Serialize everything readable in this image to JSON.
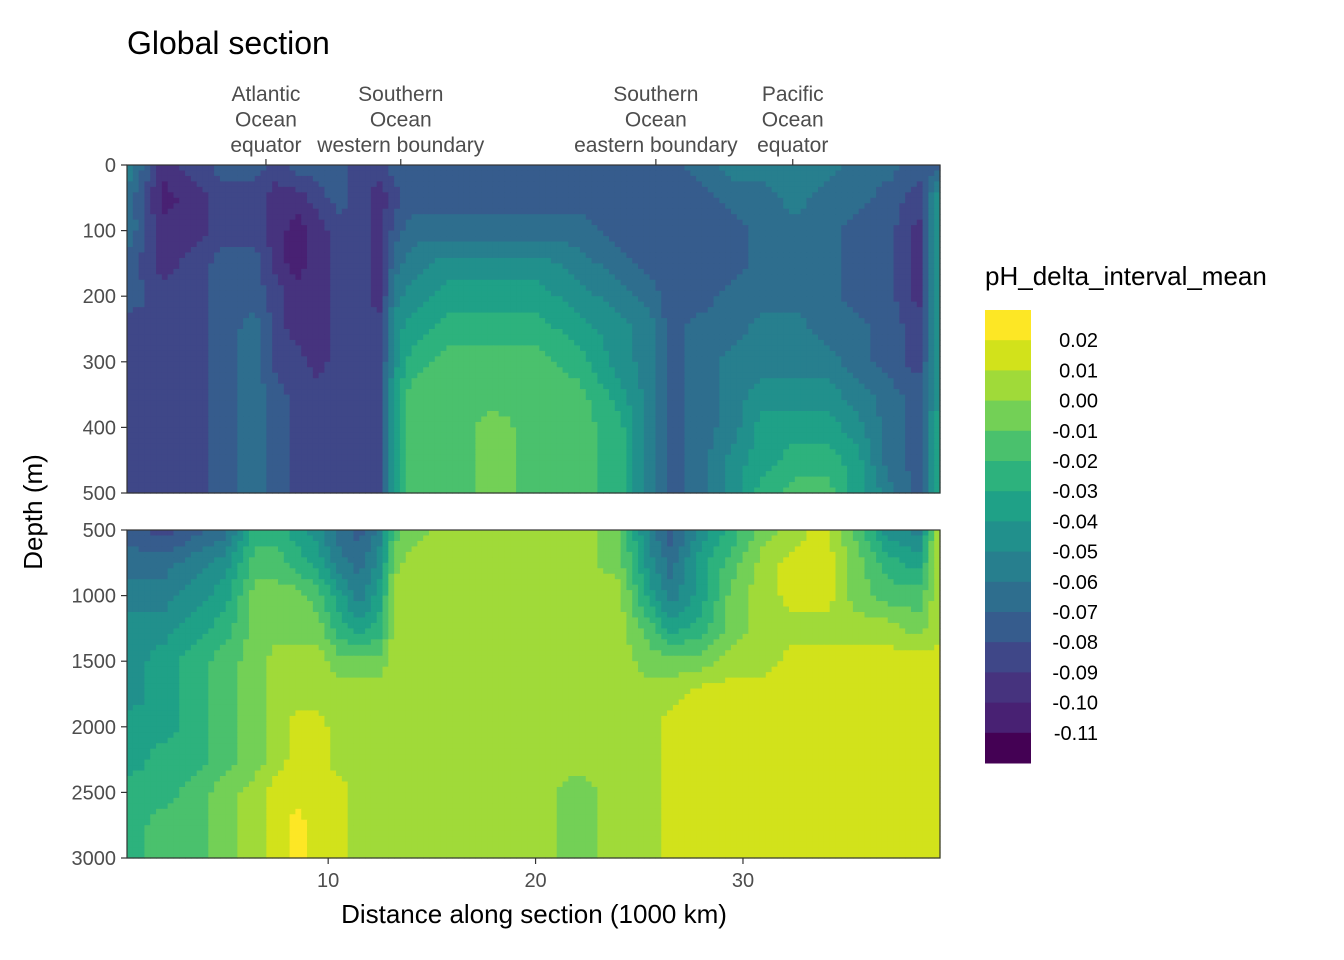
{
  "chart_data": {
    "type": "heatmap",
    "title": "Global section",
    "xlabel": "Distance along section (1000 km)",
    "ylabel": "Depth (m)",
    "x_range": [
      0.3,
      39.5
    ],
    "x_ticks": [
      {
        "value": 10,
        "label": "10"
      },
      {
        "value": 20,
        "label": "20"
      },
      {
        "value": 30,
        "label": "30"
      }
    ],
    "top_labels": [
      {
        "x": 7.0,
        "lines": [
          "Atlantic",
          "Ocean",
          "equator"
        ]
      },
      {
        "x": 13.5,
        "lines": [
          "Southern",
          "Ocean",
          "western boundary"
        ]
      },
      {
        "x": 25.8,
        "lines": [
          "Southern",
          "Ocean",
          "eastern boundary"
        ]
      },
      {
        "x": 32.4,
        "lines": [
          "Pacific",
          "Ocean",
          "equator"
        ]
      }
    ],
    "panels": [
      {
        "name": "upper",
        "depth_range": [
          0,
          500
        ],
        "y_ticks": [
          {
            "value": 0,
            "label": "0"
          },
          {
            "value": 100,
            "label": "100"
          },
          {
            "value": 200,
            "label": "200"
          },
          {
            "value": 300,
            "label": "300"
          },
          {
            "value": 400,
            "label": "400"
          },
          {
            "value": 500,
            "label": "500"
          }
        ]
      },
      {
        "name": "lower",
        "depth_range": [
          500,
          3000
        ],
        "y_ticks": [
          {
            "value": 500,
            "label": "500"
          },
          {
            "value": 1000,
            "label": "1000"
          },
          {
            "value": 1500,
            "label": "1500"
          },
          {
            "value": 2000,
            "label": "2000"
          },
          {
            "value": 2500,
            "label": "2500"
          },
          {
            "value": 3000,
            "label": "3000"
          }
        ]
      }
    ],
    "legend": {
      "title": "pH_delta_interval_mean",
      "placement": "right",
      "bins": [
        {
          "label": "",
          "color": "#FDE725"
        },
        {
          "label": "0.02",
          "color": "#D2E21B"
        },
        {
          "label": "0.01",
          "color": "#A0DA39"
        },
        {
          "label": "0.00",
          "color": "#73D056"
        },
        {
          "label": "-0.01",
          "color": "#4AC16D"
        },
        {
          "label": "-0.02",
          "color": "#2DB27D"
        },
        {
          "label": "-0.03",
          "color": "#1FA187"
        },
        {
          "label": "-0.04",
          "color": "#21908C"
        },
        {
          "label": "-0.05",
          "color": "#277F8E"
        },
        {
          "label": "-0.06",
          "color": "#2E6E8E"
        },
        {
          "label": "-0.07",
          "color": "#365C8D"
        },
        {
          "label": "-0.08",
          "color": "#3F4788"
        },
        {
          "label": "-0.09",
          "color": "#46337E"
        },
        {
          "label": "-0.10",
          "color": "#482173"
        },
        {
          "label": "-0.11",
          "color": "#440154"
        }
      ]
    },
    "fields": {
      "upper": {
        "x": [
          0.5,
          2.0,
          3.5,
          5.0,
          6.5,
          7.5,
          8.5,
          9.5,
          10.5,
          11.5,
          12.5,
          13.2,
          14.0,
          16.0,
          18.0,
          20.0,
          22.0,
          24.0,
          25.5,
          26.5,
          28.0,
          29.5,
          31.0,
          32.5,
          34.0,
          35.5,
          37.0,
          38.5,
          39.3
        ],
        "depth": [
          0,
          50,
          100,
          150,
          200,
          250,
          300,
          350,
          400,
          450,
          500
        ],
        "values": [
          [
            -0.06,
            -0.1,
            -0.09,
            -0.08,
            -0.08,
            -0.09,
            -0.08,
            -0.08,
            -0.08,
            -0.09,
            -0.09,
            -0.08,
            -0.08,
            -0.08,
            -0.08,
            -0.08,
            -0.08,
            -0.08,
            -0.08,
            -0.08,
            -0.07,
            -0.06,
            -0.06,
            -0.06,
            -0.06,
            -0.07,
            -0.07,
            -0.08,
            -0.08
          ],
          [
            -0.07,
            -0.11,
            -0.1,
            -0.09,
            -0.09,
            -0.1,
            -0.1,
            -0.09,
            -0.08,
            -0.09,
            -0.1,
            -0.09,
            -0.08,
            -0.08,
            -0.08,
            -0.08,
            -0.08,
            -0.08,
            -0.08,
            -0.08,
            -0.08,
            -0.07,
            -0.07,
            -0.06,
            -0.07,
            -0.07,
            -0.08,
            -0.09,
            -0.05
          ],
          [
            -0.07,
            -0.1,
            -0.1,
            -0.09,
            -0.09,
            -0.1,
            -0.11,
            -0.1,
            -0.09,
            -0.09,
            -0.1,
            -0.08,
            -0.07,
            -0.07,
            -0.07,
            -0.07,
            -0.07,
            -0.08,
            -0.08,
            -0.08,
            -0.08,
            -0.08,
            -0.07,
            -0.07,
            -0.07,
            -0.08,
            -0.08,
            -0.1,
            -0.05
          ],
          [
            -0.08,
            -0.1,
            -0.09,
            -0.08,
            -0.08,
            -0.1,
            -0.11,
            -0.1,
            -0.09,
            -0.09,
            -0.1,
            -0.07,
            -0.06,
            -0.05,
            -0.05,
            -0.05,
            -0.06,
            -0.07,
            -0.08,
            -0.08,
            -0.08,
            -0.08,
            -0.07,
            -0.07,
            -0.07,
            -0.08,
            -0.08,
            -0.1,
            -0.05
          ],
          [
            -0.08,
            -0.09,
            -0.09,
            -0.08,
            -0.08,
            -0.09,
            -0.1,
            -0.1,
            -0.09,
            -0.09,
            -0.1,
            -0.06,
            -0.05,
            -0.04,
            -0.04,
            -0.04,
            -0.05,
            -0.06,
            -0.07,
            -0.08,
            -0.08,
            -0.07,
            -0.07,
            -0.07,
            -0.07,
            -0.08,
            -0.08,
            -0.1,
            -0.05
          ],
          [
            -0.09,
            -0.09,
            -0.09,
            -0.08,
            -0.07,
            -0.09,
            -0.1,
            -0.1,
            -0.09,
            -0.09,
            -0.09,
            -0.05,
            -0.04,
            -0.03,
            -0.03,
            -0.03,
            -0.04,
            -0.05,
            -0.06,
            -0.08,
            -0.07,
            -0.07,
            -0.06,
            -0.06,
            -0.07,
            -0.07,
            -0.08,
            -0.09,
            -0.05
          ],
          [
            -0.09,
            -0.09,
            -0.09,
            -0.08,
            -0.07,
            -0.09,
            -0.09,
            -0.1,
            -0.09,
            -0.09,
            -0.09,
            -0.05,
            -0.03,
            -0.02,
            -0.02,
            -0.02,
            -0.03,
            -0.05,
            -0.06,
            -0.08,
            -0.07,
            -0.06,
            -0.06,
            -0.06,
            -0.06,
            -0.07,
            -0.08,
            -0.09,
            -0.05
          ],
          [
            -0.09,
            -0.09,
            -0.09,
            -0.08,
            -0.07,
            -0.08,
            -0.09,
            -0.09,
            -0.09,
            -0.09,
            -0.09,
            -0.04,
            -0.02,
            -0.02,
            -0.02,
            -0.02,
            -0.02,
            -0.04,
            -0.06,
            -0.08,
            -0.07,
            -0.06,
            -0.05,
            -0.05,
            -0.05,
            -0.06,
            -0.07,
            -0.08,
            -0.05
          ],
          [
            -0.09,
            -0.09,
            -0.09,
            -0.08,
            -0.07,
            -0.08,
            -0.09,
            -0.09,
            -0.09,
            -0.09,
            -0.09,
            -0.04,
            -0.02,
            -0.02,
            -0.01,
            -0.02,
            -0.02,
            -0.03,
            -0.06,
            -0.08,
            -0.07,
            -0.06,
            -0.04,
            -0.04,
            -0.04,
            -0.05,
            -0.07,
            -0.08,
            -0.04
          ],
          [
            -0.09,
            -0.09,
            -0.09,
            -0.08,
            -0.07,
            -0.08,
            -0.09,
            -0.09,
            -0.09,
            -0.09,
            -0.09,
            -0.04,
            -0.02,
            -0.02,
            -0.01,
            -0.02,
            -0.02,
            -0.03,
            -0.06,
            -0.08,
            -0.07,
            -0.05,
            -0.04,
            -0.03,
            -0.03,
            -0.04,
            -0.07,
            -0.08,
            -0.04
          ],
          [
            -0.09,
            -0.09,
            -0.09,
            -0.08,
            -0.07,
            -0.08,
            -0.09,
            -0.09,
            -0.09,
            -0.09,
            -0.09,
            -0.04,
            -0.02,
            -0.02,
            -0.01,
            -0.02,
            -0.02,
            -0.03,
            -0.06,
            -0.08,
            -0.07,
            -0.05,
            -0.03,
            -0.02,
            -0.02,
            -0.04,
            -0.06,
            -0.08,
            -0.04
          ]
        ]
      },
      "lower": {
        "x": [
          0.5,
          2.0,
          3.5,
          5.0,
          6.5,
          7.5,
          8.5,
          9.5,
          10.5,
          11.5,
          12.5,
          13.2,
          14.0,
          16.0,
          18.0,
          20.0,
          22.0,
          24.0,
          25.5,
          26.5,
          28.0,
          29.5,
          31.0,
          32.5,
          34.0,
          35.5,
          37.0,
          38.5,
          39.3
        ],
        "depth": [
          500,
          750,
          1000,
          1250,
          1500,
          1750,
          2000,
          2250,
          2500,
          2750,
          3000
        ],
        "values": [
          [
            -0.08,
            -0.09,
            -0.08,
            -0.07,
            -0.03,
            -0.03,
            -0.04,
            -0.05,
            -0.07,
            -0.08,
            -0.06,
            -0.02,
            -0.01,
            0.0,
            0.0,
            0.0,
            0.0,
            -0.01,
            -0.06,
            -0.08,
            -0.05,
            -0.03,
            -0.01,
            0.0,
            0.01,
            -0.02,
            -0.05,
            -0.06,
            0.0
          ],
          [
            -0.07,
            -0.07,
            -0.06,
            -0.05,
            -0.02,
            -0.02,
            -0.03,
            -0.04,
            -0.06,
            -0.07,
            -0.05,
            -0.01,
            0.0,
            0.0,
            0.0,
            0.0,
            0.0,
            -0.01,
            -0.05,
            -0.07,
            -0.04,
            -0.02,
            0.0,
            0.01,
            0.01,
            -0.01,
            -0.03,
            -0.04,
            0.0
          ],
          [
            -0.06,
            -0.06,
            -0.05,
            -0.04,
            -0.01,
            -0.01,
            -0.01,
            -0.02,
            -0.04,
            -0.06,
            -0.04,
            0.0,
            0.0,
            0.0,
            0.0,
            0.0,
            0.0,
            0.0,
            -0.04,
            -0.06,
            -0.04,
            -0.01,
            0.0,
            0.01,
            0.01,
            -0.01,
            -0.02,
            -0.02,
            0.0
          ],
          [
            -0.05,
            -0.05,
            -0.04,
            -0.03,
            -0.01,
            -0.01,
            -0.01,
            -0.01,
            -0.03,
            -0.04,
            -0.03,
            0.0,
            0.0,
            0.0,
            0.0,
            0.0,
            0.0,
            0.0,
            -0.02,
            -0.04,
            -0.03,
            -0.01,
            0.0,
            0.0,
            0.0,
            0.0,
            0.0,
            -0.01,
            0.0
          ],
          [
            -0.05,
            -0.04,
            -0.03,
            -0.02,
            -0.01,
            0.0,
            0.0,
            0.0,
            -0.01,
            -0.01,
            -0.01,
            0.0,
            0.0,
            0.0,
            0.0,
            0.0,
            0.0,
            0.0,
            -0.01,
            -0.01,
            -0.01,
            0.0,
            0.0,
            0.01,
            0.01,
            0.01,
            0.01,
            0.01,
            0.01
          ],
          [
            -0.05,
            -0.04,
            -0.03,
            -0.02,
            -0.01,
            0.0,
            0.0,
            0.0,
            0.0,
            0.0,
            0.0,
            0.0,
            0.0,
            0.0,
            0.0,
            0.0,
            0.0,
            0.0,
            0.0,
            0.0,
            0.01,
            0.01,
            0.01,
            0.01,
            0.01,
            0.01,
            0.01,
            0.01,
            0.01
          ],
          [
            -0.04,
            -0.04,
            -0.03,
            -0.02,
            -0.01,
            0.0,
            0.01,
            0.01,
            0.0,
            0.0,
            0.0,
            0.0,
            0.0,
            0.0,
            0.0,
            0.0,
            0.0,
            0.0,
            0.0,
            0.01,
            0.01,
            0.01,
            0.01,
            0.01,
            0.01,
            0.01,
            0.01,
            0.01,
            0.01
          ],
          [
            -0.04,
            -0.03,
            -0.03,
            -0.02,
            -0.01,
            0.0,
            0.01,
            0.01,
            0.0,
            0.0,
            0.0,
            0.0,
            0.0,
            0.0,
            0.0,
            0.0,
            0.0,
            0.0,
            0.0,
            0.01,
            0.01,
            0.01,
            0.01,
            0.01,
            0.01,
            0.01,
            0.01,
            0.01,
            0.01
          ],
          [
            -0.03,
            -0.03,
            -0.02,
            -0.01,
            0.0,
            0.01,
            0.01,
            0.01,
            0.01,
            0.0,
            0.0,
            0.0,
            0.0,
            0.0,
            0.0,
            0.0,
            -0.01,
            0.0,
            0.0,
            0.01,
            0.01,
            0.01,
            0.01,
            0.01,
            0.01,
            0.01,
            0.01,
            0.01,
            0.01
          ],
          [
            -0.03,
            -0.02,
            -0.02,
            -0.01,
            0.0,
            0.01,
            0.02,
            0.01,
            0.01,
            0.0,
            0.0,
            0.0,
            0.0,
            0.0,
            0.0,
            0.0,
            -0.01,
            0.0,
            0.0,
            0.01,
            0.01,
            0.01,
            0.01,
            0.01,
            0.01,
            0.01,
            0.01,
            0.01,
            0.01
          ],
          [
            -0.03,
            -0.02,
            -0.02,
            -0.01,
            0.0,
            0.01,
            0.02,
            0.01,
            0.01,
            0.0,
            0.0,
            0.0,
            0.0,
            0.0,
            0.0,
            0.0,
            -0.01,
            0.0,
            0.0,
            0.01,
            0.01,
            0.01,
            0.01,
            0.01,
            0.01,
            0.01,
            0.01,
            0.01,
            0.01
          ]
        ]
      }
    }
  }
}
